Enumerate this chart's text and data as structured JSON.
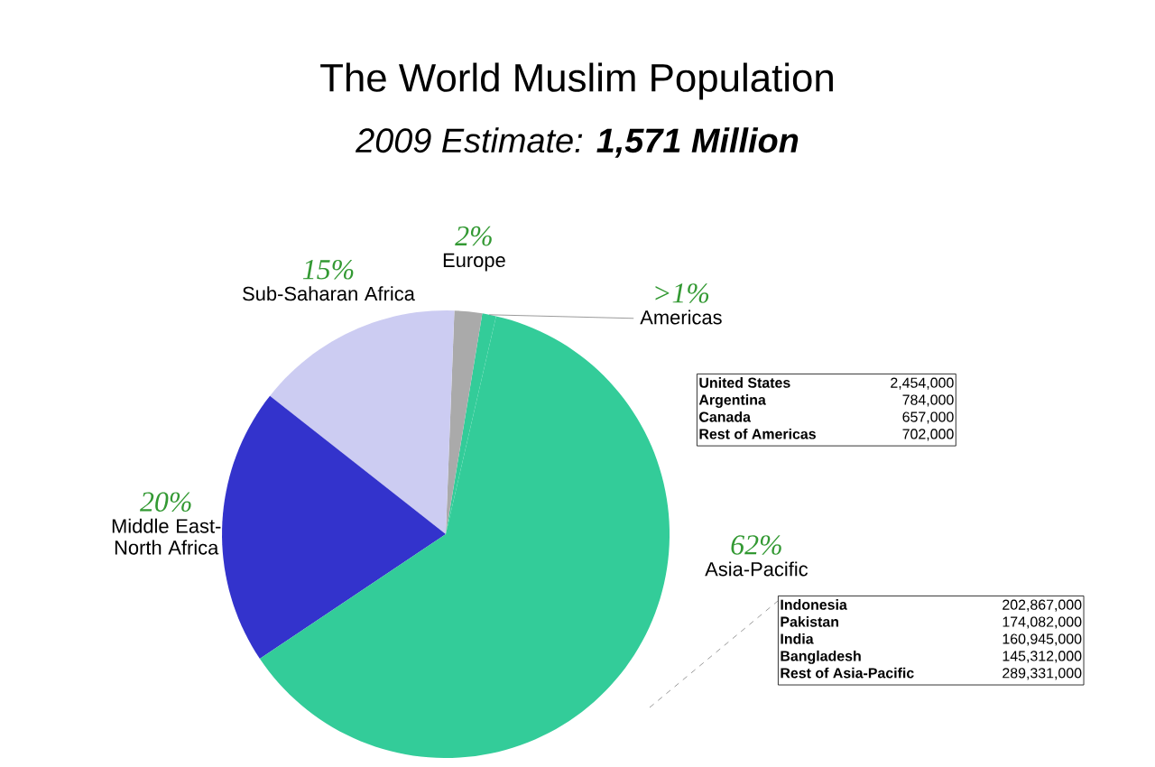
{
  "chart_data": {
    "type": "pie",
    "title": "The World Muslim Population",
    "subtitle": "2009 Estimate: **1,571 Million**",
    "categories": [
      "Americas",
      "Europe",
      "Sub-Saharan Africa",
      "Middle East-North Africa",
      "Asia-Pacific"
    ],
    "values": [
      1,
      2,
      15,
      20,
      62
    ],
    "value_labels": [
      ">1%",
      "2%",
      "15%",
      "20%",
      "62%"
    ],
    "colors": [
      "#33cc99",
      "#aaaaaa",
      "#ccccf2",
      "#3333cc",
      "#33cc99"
    ],
    "annotations": [
      "United States",
      "2,454,000",
      "Argentina",
      "784,000",
      "Canada",
      "657,000",
      "Rest of Americas",
      "702,000",
      "Indonesia",
      "202,867,000",
      "Pakistan",
      "174,082,000",
      "India",
      "160,945,000",
      "Bangladesh",
      "145,312,000",
      "Rest of Asia-Pacific",
      "289,331,000"
    ]
  }
}
